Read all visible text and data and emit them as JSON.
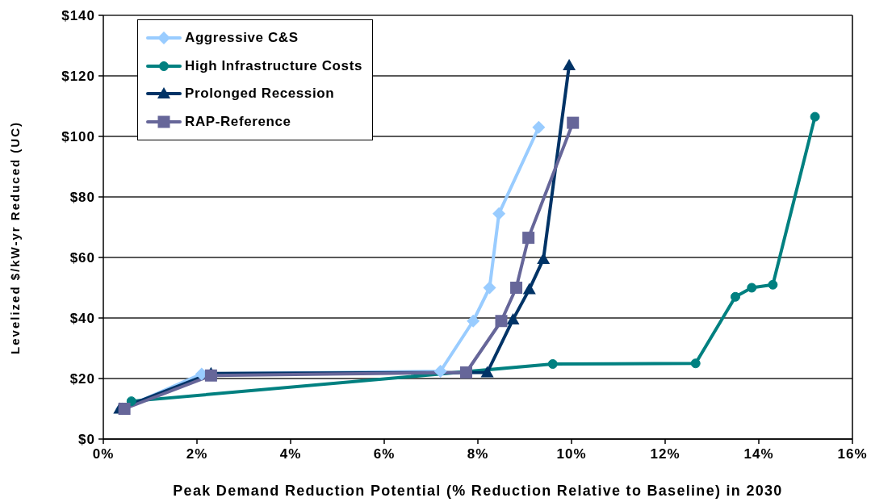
{
  "chart_data": {
    "type": "line",
    "xlabel": "Peak Demand Reduction Potential (% Reduction Relative to Baseline) in 2030",
    "ylabel": "Levelized $/kW-yr Reduced (UC)",
    "xlim": [
      0,
      16
    ],
    "xticks": [
      {
        "value": 0,
        "label": "0%"
      },
      {
        "value": 2,
        "label": "2%"
      },
      {
        "value": 4,
        "label": "4%"
      },
      {
        "value": 6,
        "label": "6%"
      },
      {
        "value": 8,
        "label": "8%"
      },
      {
        "value": 10,
        "label": "10%"
      },
      {
        "value": 12,
        "label": "12%"
      },
      {
        "value": 14,
        "label": "14%"
      },
      {
        "value": 16,
        "label": "16%"
      }
    ],
    "ylim": [
      0,
      140
    ],
    "yticks": [
      {
        "value": 0,
        "label": "$0"
      },
      {
        "value": 20,
        "label": "$20"
      },
      {
        "value": 40,
        "label": "$40"
      },
      {
        "value": 60,
        "label": "$60"
      },
      {
        "value": 80,
        "label": "$80"
      },
      {
        "value": 100,
        "label": "$100"
      },
      {
        "value": 120,
        "label": "$120"
      },
      {
        "value": 140,
        "label": "$140"
      }
    ],
    "grid": "y",
    "legend": "top left",
    "series": [
      {
        "name": "Aggressive C&S",
        "color": "#99ccff",
        "marker": "diamond",
        "x": [
          0.4,
          2.1,
          7.2,
          7.9,
          8.25,
          8.45,
          9.3
        ],
        "values": [
          10,
          21.5,
          22.4,
          39,
          50,
          74.5,
          103
        ]
      },
      {
        "name": "High Infrastructure Costs",
        "color": "#008080",
        "marker": "circle",
        "x": [
          0.6,
          9.6,
          12.65,
          13.5,
          13.85,
          14.3,
          15.2
        ],
        "values": [
          12.5,
          24.8,
          25,
          47,
          50,
          51,
          106.5
        ]
      },
      {
        "name": "Prolonged Recession",
        "color": "#003366",
        "marker": "triangle",
        "x": [
          0.35,
          2.3,
          8.2,
          8.75,
          9.1,
          9.4,
          9.95
        ],
        "values": [
          10,
          21.7,
          22,
          39.5,
          49.5,
          59.5,
          123.5
        ]
      },
      {
        "name": "RAP-Reference",
        "color": "#666699",
        "marker": "square",
        "x": [
          0.45,
          2.3,
          7.75,
          8.5,
          8.82,
          9.08,
          10.03
        ],
        "values": [
          10,
          21,
          22,
          39,
          50,
          66.5,
          104.5
        ]
      }
    ]
  }
}
